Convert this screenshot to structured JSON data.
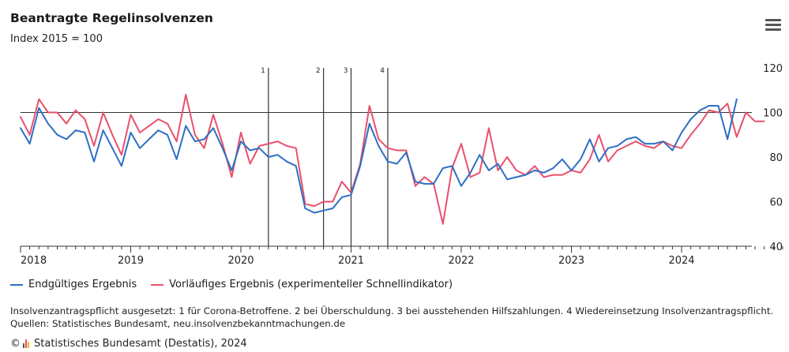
{
  "header": {
    "title": "Beantragte Regelinsolvenzen",
    "subtitle": "Index 2015 = 100"
  },
  "menu": {
    "icon": "hamburger-menu-icon"
  },
  "legend": [
    {
      "name": "Endgültiges Ergebnis",
      "color": "#2e6fc4"
    },
    {
      "name": "Vorläufiges Ergebnis (experimenteller Schnellindikator)",
      "color": "#e8506b"
    }
  ],
  "notes": {
    "line1": "Insolvenzantragspflicht ausgesetzt: 1 für Corona-Betroffene. 2 bei Überschuldung. 3 bei ausstehenden Hilfszahlungen. 4 Wiedereinsetzung Insolvenzantragspflicht.",
    "line2": "Quellen: Statistisches Bundesamt, neu.insolvenzbekanntmachungen.de"
  },
  "footer": {
    "copyright": "Statistisches Bundesamt (Destatis), 2024",
    "copyright_symbol": "©",
    "logo_colors": [
      "#555555",
      "#e8506b",
      "#f2b600"
    ]
  },
  "chart_data": {
    "type": "line",
    "xlabel": "",
    "ylabel": "",
    "x_start": "2018-01",
    "x_tick_labels": [
      "2018",
      "2019",
      "2020",
      "2021",
      "2022",
      "2023",
      "2024"
    ],
    "ylim": [
      40,
      120
    ],
    "y_ticks": [
      40,
      60,
      80,
      100,
      120
    ],
    "y_axis_position": "right",
    "reference_line": 100,
    "grid": false,
    "legend_position": "bottom-left",
    "vertical_markers": [
      {
        "label": "1",
        "date": "2020-04"
      },
      {
        "label": "2",
        "date": "2020-10"
      },
      {
        "label": "3",
        "date": "2021-01"
      },
      {
        "label": "4",
        "date": "2021-05"
      }
    ],
    "series": [
      {
        "name": "Endgültiges Ergebnis",
        "color": "#2e6fc4",
        "start": "2018-01",
        "values": [
          93,
          86,
          102,
          95,
          90,
          88,
          92,
          91,
          78,
          92,
          84,
          76,
          91,
          84,
          88,
          92,
          90,
          79,
          94,
          87,
          88,
          93,
          84,
          74,
          87,
          83,
          84,
          80,
          81,
          78,
          76,
          57,
          55,
          56,
          57,
          62,
          63,
          76,
          95,
          85,
          78,
          77,
          82,
          69,
          68,
          68,
          75,
          76,
          67,
          73,
          81,
          74,
          77,
          70,
          71,
          72,
          74,
          73,
          75,
          79,
          74,
          79,
          88,
          78,
          84,
          85,
          88,
          89,
          86,
          86,
          87,
          83,
          91,
          97,
          101,
          103,
          103,
          88,
          106
        ]
      },
      {
        "name": "Vorläufiges Ergebnis (experimenteller Schnellindikator)",
        "color": "#e8506b",
        "start": "2018-01",
        "values": [
          98,
          90,
          106,
          100,
          100,
          95,
          101,
          97,
          85,
          100,
          90,
          81,
          99,
          91,
          94,
          97,
          95,
          87,
          108,
          90,
          84,
          99,
          86,
          71,
          91,
          77,
          85,
          86,
          87,
          85,
          84,
          59,
          58,
          60,
          60,
          69,
          64,
          77,
          103,
          88,
          84,
          83,
          83,
          67,
          71,
          68,
          50,
          75,
          86,
          71,
          73,
          93,
          74,
          80,
          74,
          72,
          76,
          71,
          72,
          72,
          74,
          73,
          79,
          90,
          78,
          83,
          85,
          87,
          85,
          84,
          87,
          85,
          84,
          90,
          95,
          101,
          100,
          104,
          89,
          100,
          96,
          96
        ]
      }
    ]
  }
}
